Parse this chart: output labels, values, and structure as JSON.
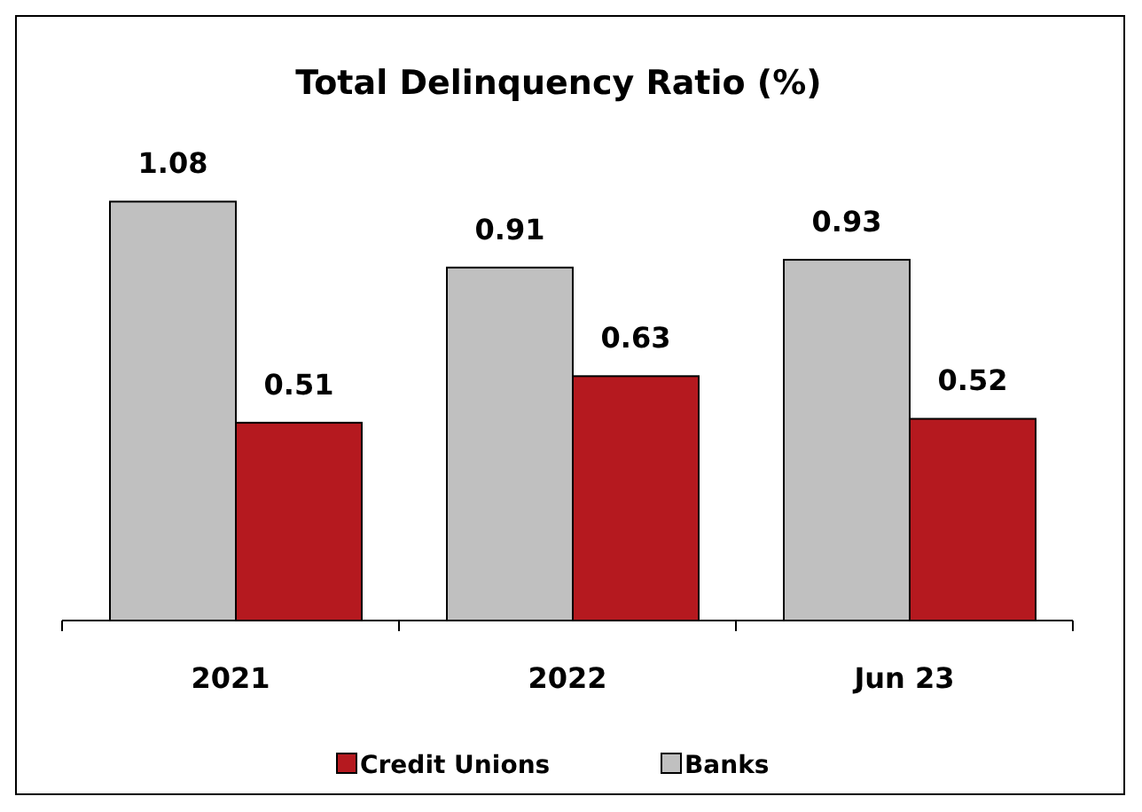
{
  "chart_data": {
    "type": "bar",
    "title": "Total Delinquency Ratio (%)",
    "categories": [
      "2021",
      "2022",
      "Jun 23"
    ],
    "series": [
      {
        "name": "Banks",
        "color": "#c0c0c0",
        "values": [
          1.08,
          0.91,
          0.93
        ]
      },
      {
        "name": "Credit Unions",
        "color": "#b5191f",
        "values": [
          0.51,
          0.63,
          0.52
        ]
      }
    ],
    "data_labels": true,
    "legend": "bottom"
  }
}
